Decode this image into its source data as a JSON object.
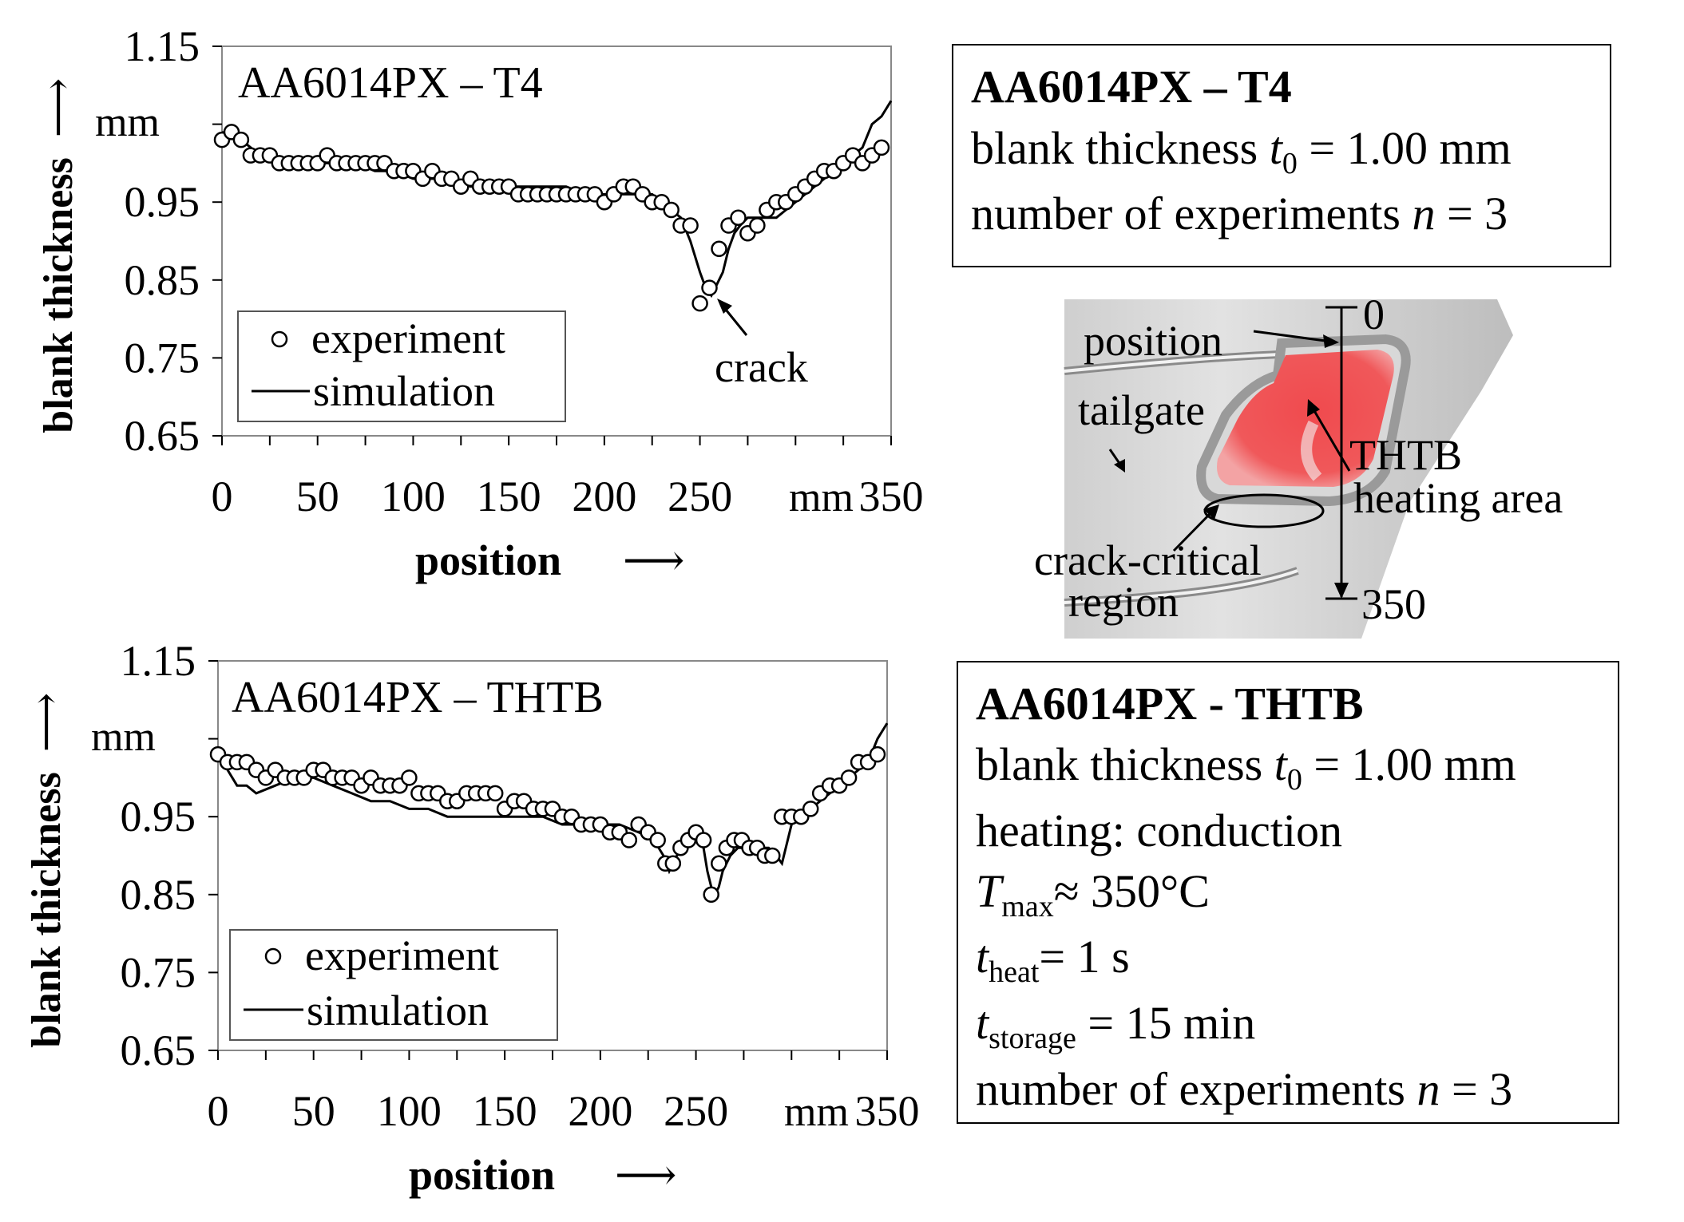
{
  "charts": [
    {
      "panel_label": "AA6014PX – T4",
      "ylabel": "blank thickness",
      "yunit": "mm",
      "xlabel": "position",
      "xunit": "mm",
      "yticks": [
        "0.65",
        "0.75",
        "0.85",
        "0.95",
        "1.15"
      ],
      "xticks": [
        "0",
        "50",
        "100",
        "150",
        "200",
        "250",
        "350"
      ],
      "annotation": "crack"
    },
    {
      "panel_label": "AA6014PX – THTB",
      "ylabel": "blank thickness",
      "yunit": "mm",
      "xlabel": "position",
      "xunit": "mm",
      "yticks": [
        "0.65",
        "0.75",
        "0.85",
        "0.95",
        "1.15"
      ],
      "xticks": [
        "0",
        "50",
        "100",
        "150",
        "200",
        "250",
        "350"
      ]
    }
  ],
  "legend": {
    "experiment": "experiment",
    "simulation": "simulation"
  },
  "chart_data": [
    {
      "type": "line",
      "title": "AA6014PX – T4",
      "xlabel": "position",
      "ylabel": "blank thickness",
      "xlim": [
        0,
        350
      ],
      "ylim": [
        0.65,
        1.15
      ],
      "legend_position": "bottom-left",
      "series": [
        {
          "name": "experiment",
          "marker": "circle",
          "x": [
            0,
            5,
            10,
            15,
            20,
            25,
            30,
            35,
            40,
            45,
            50,
            55,
            60,
            65,
            70,
            75,
            80,
            85,
            90,
            95,
            100,
            105,
            110,
            115,
            120,
            125,
            130,
            135,
            140,
            145,
            150,
            155,
            160,
            165,
            170,
            175,
            180,
            185,
            190,
            195,
            200,
            205,
            210,
            215,
            220,
            225,
            230,
            235,
            240,
            245,
            250,
            255,
            260,
            265,
            270,
            275,
            280,
            285,
            290,
            295,
            300,
            305,
            310,
            315,
            320,
            325,
            330,
            335,
            340,
            345
          ],
          "y": [
            1.03,
            1.04,
            1.03,
            1.01,
            1.01,
            1.01,
            1.0,
            1.0,
            1.0,
            1.0,
            1.0,
            1.01,
            1.0,
            1.0,
            1.0,
            1.0,
            1.0,
            1.0,
            0.99,
            0.99,
            0.99,
            0.98,
            0.99,
            0.98,
            0.98,
            0.97,
            0.98,
            0.97,
            0.97,
            0.97,
            0.97,
            0.96,
            0.96,
            0.96,
            0.96,
            0.96,
            0.96,
            0.96,
            0.96,
            0.96,
            0.95,
            0.96,
            0.97,
            0.97,
            0.96,
            0.95,
            0.95,
            0.94,
            0.92,
            0.92,
            0.82,
            0.84,
            0.89,
            0.92,
            0.93,
            0.91,
            0.92,
            0.94,
            0.95,
            0.95,
            0.96,
            0.97,
            0.98,
            0.99,
            0.99,
            1.0,
            1.01,
            1.0,
            1.01,
            1.02
          ]
        },
        {
          "name": "simulation",
          "x": [
            0,
            10,
            20,
            30,
            40,
            50,
            60,
            70,
            80,
            90,
            100,
            110,
            120,
            130,
            140,
            150,
            160,
            170,
            180,
            190,
            200,
            210,
            220,
            225,
            230,
            235,
            240,
            245,
            250,
            253,
            256,
            258,
            260,
            262,
            265,
            268,
            271,
            275,
            280,
            285,
            290,
            295,
            300,
            310,
            320,
            330,
            335,
            340,
            345,
            350
          ],
          "y": [
            1.04,
            1.03,
            1.01,
            1.0,
            1.0,
            1.0,
            1.0,
            1.0,
            0.99,
            0.99,
            0.98,
            0.98,
            0.98,
            0.97,
            0.97,
            0.97,
            0.97,
            0.97,
            0.97,
            0.96,
            0.96,
            0.96,
            0.96,
            0.96,
            0.95,
            0.94,
            0.93,
            0.9,
            0.86,
            0.84,
            0.83,
            0.84,
            0.85,
            0.86,
            0.89,
            0.91,
            0.92,
            0.93,
            0.93,
            0.93,
            0.93,
            0.94,
            0.95,
            0.97,
            0.99,
            1.01,
            1.02,
            1.05,
            1.06,
            1.08
          ]
        }
      ]
    },
    {
      "type": "line",
      "title": "AA6014PX – THTB",
      "xlabel": "position",
      "ylabel": "blank thickness",
      "xlim": [
        0,
        350
      ],
      "ylim": [
        0.65,
        1.15
      ],
      "legend_position": "bottom-left",
      "series": [
        {
          "name": "experiment",
          "marker": "circle",
          "x": [
            0,
            5,
            10,
            15,
            20,
            25,
            30,
            35,
            40,
            45,
            50,
            55,
            60,
            65,
            70,
            75,
            80,
            85,
            90,
            95,
            100,
            105,
            110,
            115,
            120,
            125,
            130,
            135,
            140,
            145,
            150,
            155,
            160,
            165,
            170,
            175,
            180,
            185,
            190,
            195,
            200,
            205,
            210,
            215,
            220,
            225,
            230,
            234,
            238,
            242,
            246,
            250,
            254,
            258,
            262,
            266,
            270,
            274,
            278,
            282,
            286,
            290,
            295,
            300,
            305,
            310,
            315,
            320,
            325,
            330,
            335,
            340,
            345
          ],
          "y": [
            1.03,
            1.02,
            1.02,
            1.02,
            1.01,
            1.0,
            1.01,
            1.0,
            1.0,
            1.0,
            1.01,
            1.01,
            1.0,
            1.0,
            1.0,
            0.99,
            1.0,
            0.99,
            0.99,
            0.99,
            1.0,
            0.98,
            0.98,
            0.98,
            0.97,
            0.97,
            0.98,
            0.98,
            0.98,
            0.98,
            0.96,
            0.97,
            0.97,
            0.96,
            0.96,
            0.96,
            0.95,
            0.95,
            0.94,
            0.94,
            0.94,
            0.93,
            0.93,
            0.92,
            0.94,
            0.93,
            0.92,
            0.89,
            0.89,
            0.91,
            0.92,
            0.93,
            0.92,
            0.85,
            0.89,
            0.91,
            0.92,
            0.92,
            0.91,
            0.91,
            0.9,
            0.9,
            0.95,
            0.95,
            0.95,
            0.96,
            0.98,
            0.99,
            0.99,
            1.0,
            1.02,
            1.02,
            1.03
          ]
        },
        {
          "name": "simulation",
          "x": [
            0,
            5,
            10,
            15,
            20,
            30,
            40,
            50,
            60,
            70,
            80,
            90,
            100,
            110,
            120,
            130,
            140,
            150,
            160,
            170,
            180,
            190,
            200,
            210,
            220,
            228,
            233,
            236,
            240,
            245,
            250,
            254,
            256,
            258,
            260,
            262,
            264,
            268,
            272,
            276,
            280,
            284,
            288,
            292,
            295,
            300,
            305,
            310,
            320,
            330,
            340,
            345,
            350
          ],
          "y": [
            1.03,
            1.01,
            0.99,
            0.99,
            0.98,
            0.99,
            1.0,
            1.0,
            0.99,
            0.98,
            0.97,
            0.97,
            0.96,
            0.96,
            0.95,
            0.95,
            0.95,
            0.95,
            0.95,
            0.95,
            0.94,
            0.94,
            0.94,
            0.94,
            0.93,
            0.92,
            0.9,
            0.88,
            0.9,
            0.91,
            0.92,
            0.91,
            0.88,
            0.86,
            0.85,
            0.86,
            0.88,
            0.9,
            0.91,
            0.91,
            0.91,
            0.91,
            0.91,
            0.9,
            0.89,
            0.94,
            0.95,
            0.96,
            0.98,
            1.0,
            1.02,
            1.05,
            1.07
          ]
        }
      ]
    }
  ],
  "info_boxes": [
    {
      "title": "AA6014PX – T4",
      "line1_text": "blank thickness ",
      "line1_var": "t",
      "line1_sub": "0",
      "line1_rest": " = 1.00 mm",
      "line2_text": "number of experiments ",
      "line2_var": "n",
      "line2_rest": " = 3"
    },
    {
      "title": "AA6014PX - THTB",
      "line1_text": "blank thickness ",
      "line1_var": "t",
      "line1_sub": "0",
      "line1_rest": " = 1.00 mm",
      "heating": "heating: conduction",
      "tmax_var": "T",
      "tmax_sub": "max",
      "tmax_rest": "≈ 350°C",
      "theat_var": "t",
      "theat_sub": "heat",
      "theat_rest": "= 1 s",
      "tstorage_var": "t",
      "tstorage_sub": "storage",
      "tstorage_rest": " = 15 min",
      "line2_text": "number of experiments ",
      "line2_var": "n",
      "line2_rest": " = 3"
    }
  ],
  "diagram": {
    "position_label": "position",
    "top_value": "0",
    "bottom_value": "350",
    "tailgate_label": "tailgate",
    "thtb_label": "THTB",
    "heating_area_label": "heating area",
    "crack_critical_label": "crack-critical",
    "region_label": "region",
    "heating_color": "#f0585a"
  }
}
